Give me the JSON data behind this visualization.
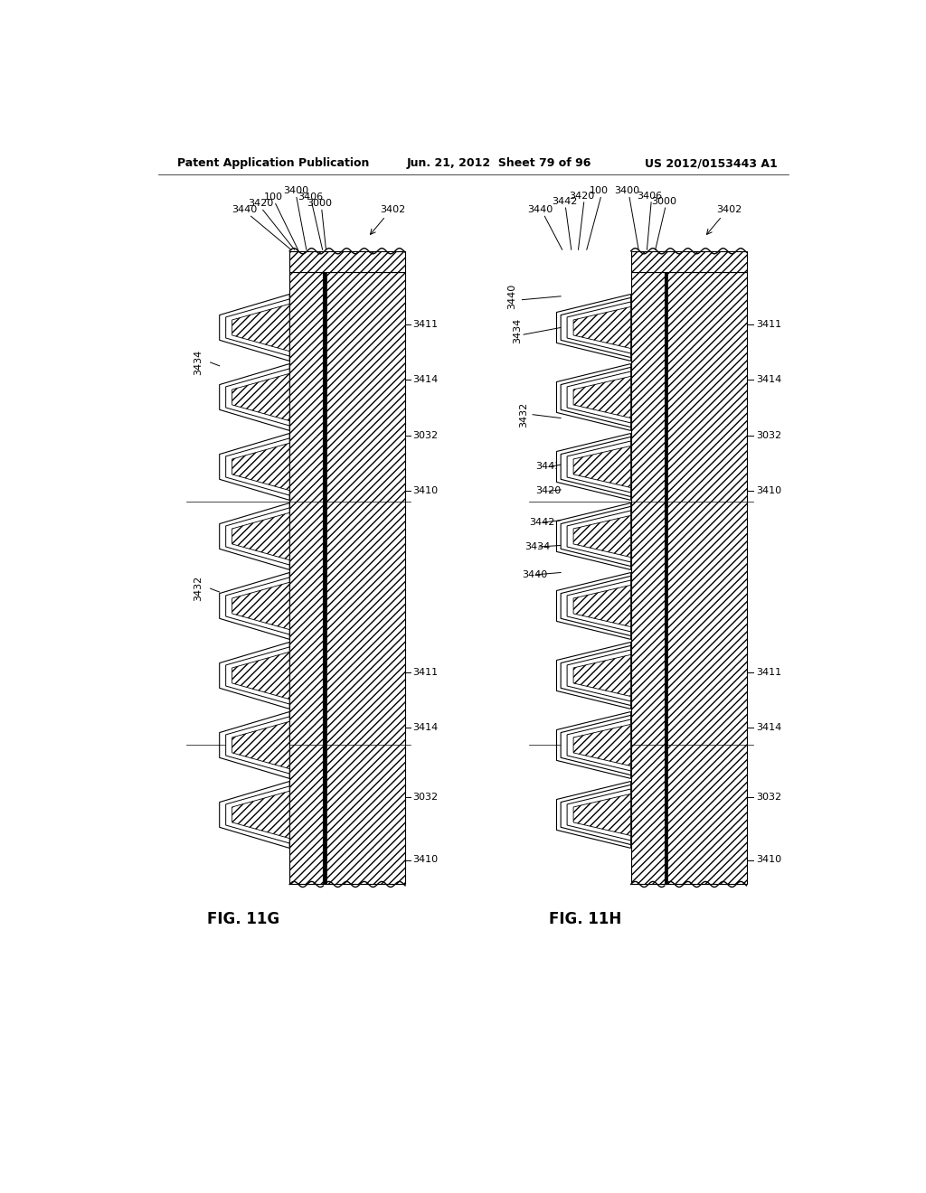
{
  "header_left": "Patent Application Publication",
  "header_center": "Jun. 21, 2012  Sheet 79 of 96",
  "header_right": "US 2012/0153443 A1",
  "fig_left_label": "FIG. 11G",
  "fig_right_label": "FIG. 11H",
  "background_color": "#ffffff"
}
